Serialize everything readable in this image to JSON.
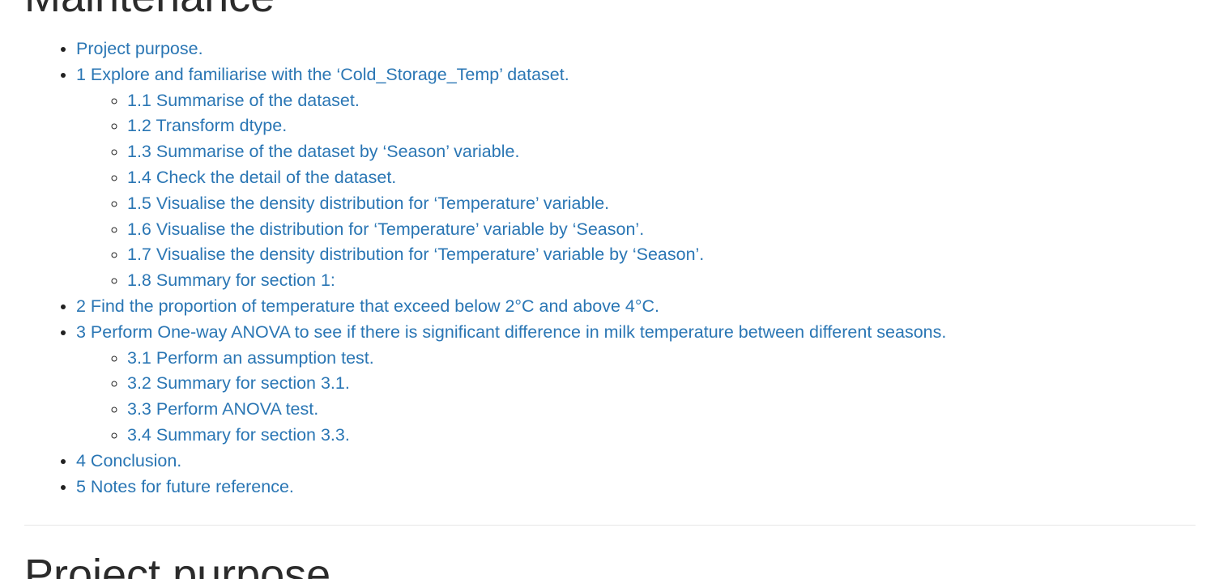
{
  "headings": {
    "top": "Maintenance",
    "bottom": "Project purpose"
  },
  "toc": [
    {
      "label": "Project purpose.",
      "children": []
    },
    {
      "label": "1 Explore and familiarise with the ‘Cold_Storage_Temp’ dataset.",
      "children": [
        "1.1 Summarise of the dataset.",
        "1.2 Transform dtype.",
        "1.3 Summarise of the dataset by ‘Season’ variable.",
        "1.4 Check the detail of the dataset.",
        "1.5 Visualise the density distribution for ‘Temperature’ variable.",
        "1.6 Visualise the distribution for ‘Temperature’ variable by ‘Season’.",
        "1.7 Visualise the density distribution for ‘Temperature’ variable by ‘Season’.",
        "1.8 Summary for section 1:"
      ]
    },
    {
      "label": "2 Find the proportion of temperature that exceed below 2°C and above 4°C.",
      "children": []
    },
    {
      "label": "3 Perform One-way ANOVA to see if there is significant difference in milk temperature between different seasons.",
      "children": [
        "3.1 Perform an assumption test.",
        "3.2 Summary for section 3.1.",
        "3.3 Perform ANOVA test.",
        "3.4 Summary for section 3.3."
      ]
    },
    {
      "label": "4 Conclusion.",
      "children": []
    },
    {
      "label": "5 Notes for future reference.",
      "children": []
    }
  ],
  "colors": {
    "link": "#2a76b4",
    "heading": "#2b2b2b",
    "rule": "#e6e6e6"
  }
}
